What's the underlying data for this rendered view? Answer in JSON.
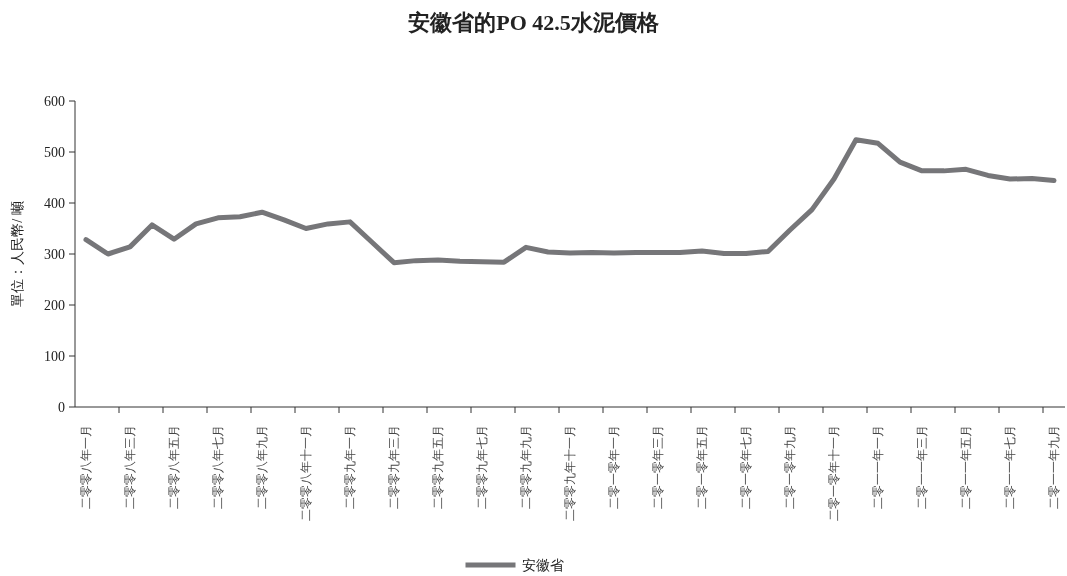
{
  "chart_data": {
    "type": "line",
    "title": "安徽省的PO 42.5水泥價格",
    "ylabel": "單位：人民幣/ 噸",
    "categories": [
      "二零零八年一月",
      null,
      "二零零八年三月",
      null,
      "二零零八年五月",
      null,
      "二零零八年七月",
      null,
      "二零零八年九月",
      null,
      "二零零八年十一月",
      null,
      "二零零九年一月",
      null,
      "二零零九年三月",
      null,
      "二零零九年五月",
      null,
      "二零零九年七月",
      null,
      "二零零九年九月",
      null,
      "二零零九年十一月",
      null,
      "二零一零年一月",
      null,
      "二零一零年三月",
      null,
      "二零一零年五月",
      null,
      "二零一零年七月",
      null,
      "二零一零年九月",
      null,
      "二零一零年十一月",
      null,
      "二零一一年一月",
      null,
      "二零一一年三月",
      null,
      "二零一一年五月",
      null,
      "二零一一年七月",
      null,
      "二零一一年九月"
    ],
    "series": [
      {
        "name": "安徽省",
        "color": "#767679",
        "values": [
          328,
          300,
          314,
          357,
          329,
          359,
          371,
          373,
          382,
          367,
          350,
          359,
          363,
          323,
          283,
          287,
          288,
          286,
          285,
          284,
          313,
          304,
          302,
          303,
          302,
          303,
          303,
          303,
          306,
          301,
          301,
          305,
          347,
          387,
          447,
          524,
          517,
          480,
          463,
          463,
          466,
          454,
          447,
          448,
          444
        ]
      }
    ],
    "ylim": [
      0,
      600
    ],
    "yticks": [
      0,
      100,
      200,
      300,
      400,
      500,
      600
    ],
    "legend": "bottom",
    "line_style": "solid",
    "grid": false
  }
}
